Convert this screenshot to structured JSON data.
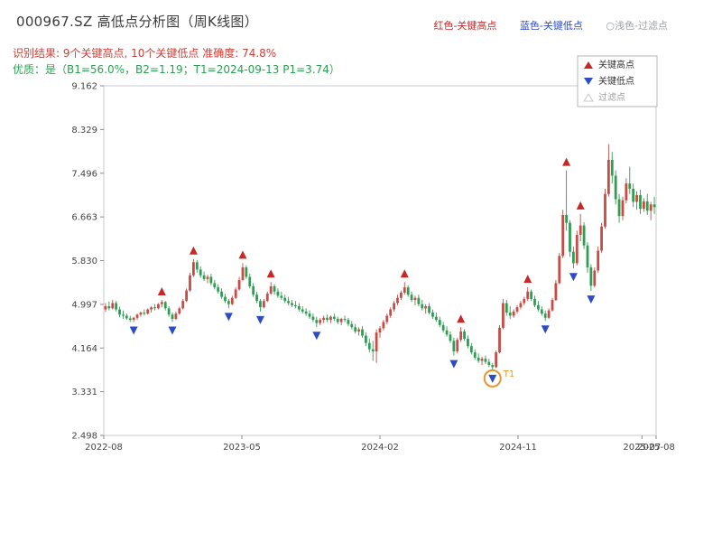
{
  "header": {
    "title": "000967.SZ 高低点分析图（周K线图）",
    "legend_top": [
      {
        "label": "红色-关键高点",
        "color": "#c62828"
      },
      {
        "label": "蓝色-关键低点",
        "color": "#2e4bc6"
      },
      {
        "label": "○浅色-过滤点",
        "color": "#9aa0a6"
      }
    ],
    "result_line": "识别结果: 9个关键高点, 10个关键低点  准确度: 74.8%",
    "quality_line": "优质：是（B1=56.0%，B2=1.19；T1=2024-09-13 P1=3.74）"
  },
  "chart_data": {
    "type": "candlestick",
    "frequency": "weekly",
    "title": "000967.SZ 高低点分析图（周K线图）",
    "ylim": [
      2.498,
      9.162
    ],
    "y_ticks": [
      2.498,
      3.331,
      4.164,
      4.997,
      5.83,
      6.663,
      7.496,
      8.329,
      9.162
    ],
    "x_ticks": [
      {
        "week": 0,
        "label": "2022-08"
      },
      {
        "week": 39,
        "label": "2023-05"
      },
      {
        "week": 78,
        "label": "2024-02"
      },
      {
        "week": 117,
        "label": "2024-11"
      },
      {
        "week": 152,
        "label": "2025-07"
      },
      {
        "week": 156,
        "label": "2025-08"
      }
    ],
    "colors": {
      "up": "#c84b45",
      "down": "#2e9e53",
      "key_high": "#c62828",
      "key_low": "#2e4bc6",
      "filter_point": "#c9c9c9",
      "annotation": "#e8962e"
    },
    "candles": [
      [
        4.9,
        5.02,
        4.85,
        4.96
      ],
      [
        4.96,
        5.05,
        4.88,
        4.92
      ],
      [
        4.92,
        5.08,
        4.9,
        5.02
      ],
      [
        5.02,
        5.06,
        4.86,
        4.9
      ],
      [
        4.9,
        4.95,
        4.75,
        4.8
      ],
      [
        4.8,
        4.88,
        4.72,
        4.78
      ],
      [
        4.78,
        4.82,
        4.7,
        4.73
      ],
      [
        4.73,
        4.78,
        4.66,
        4.7
      ],
      [
        4.7,
        4.76,
        4.66,
        4.74
      ],
      [
        4.74,
        4.82,
        4.7,
        4.8
      ],
      [
        4.8,
        4.86,
        4.76,
        4.84
      ],
      [
        4.84,
        4.9,
        4.78,
        4.82
      ],
      [
        4.82,
        4.92,
        4.8,
        4.9
      ],
      [
        4.9,
        4.96,
        4.84,
        4.94
      ],
      [
        4.94,
        5.0,
        4.88,
        4.92
      ],
      [
        4.92,
        5.02,
        4.9,
        5.0
      ],
      [
        5.0,
        5.08,
        4.94,
        5.04
      ],
      [
        5.04,
        5.06,
        4.88,
        4.92
      ],
      [
        4.92,
        4.96,
        4.76,
        4.8
      ],
      [
        4.8,
        4.84,
        4.66,
        4.72
      ],
      [
        4.72,
        4.86,
        4.7,
        4.82
      ],
      [
        4.82,
        4.95,
        4.8,
        4.92
      ],
      [
        4.92,
        5.1,
        4.9,
        5.06
      ],
      [
        5.06,
        5.3,
        5.04,
        5.26
      ],
      [
        5.26,
        5.6,
        5.24,
        5.55
      ],
      [
        5.55,
        5.86,
        5.52,
        5.8
      ],
      [
        5.8,
        5.84,
        5.6,
        5.66
      ],
      [
        5.66,
        5.72,
        5.5,
        5.55
      ],
      [
        5.55,
        5.62,
        5.44,
        5.48
      ],
      [
        5.48,
        5.56,
        5.4,
        5.52
      ],
      [
        5.52,
        5.58,
        5.36,
        5.4
      ],
      [
        5.4,
        5.46,
        5.28,
        5.32
      ],
      [
        5.32,
        5.38,
        5.2,
        5.24
      ],
      [
        5.24,
        5.3,
        5.1,
        5.14
      ],
      [
        5.14,
        5.2,
        5.02,
        5.06
      ],
      [
        5.06,
        5.1,
        4.92,
        5.0
      ],
      [
        5.0,
        5.16,
        4.98,
        5.12
      ],
      [
        5.12,
        5.32,
        5.1,
        5.28
      ],
      [
        5.28,
        5.52,
        5.26,
        5.46
      ],
      [
        5.46,
        5.78,
        5.44,
        5.7
      ],
      [
        5.7,
        5.74,
        5.48,
        5.52
      ],
      [
        5.52,
        5.58,
        5.3,
        5.34
      ],
      [
        5.34,
        5.4,
        5.14,
        5.18
      ],
      [
        5.18,
        5.24,
        5.02,
        5.06
      ],
      [
        5.06,
        5.1,
        4.86,
        4.94
      ],
      [
        4.94,
        5.1,
        4.92,
        5.06
      ],
      [
        5.06,
        5.24,
        5.04,
        5.2
      ],
      [
        5.2,
        5.42,
        5.18,
        5.34
      ],
      [
        5.34,
        5.38,
        5.18,
        5.24
      ],
      [
        5.24,
        5.3,
        5.12,
        5.16
      ],
      [
        5.16,
        5.24,
        5.08,
        5.12
      ],
      [
        5.12,
        5.18,
        5.02,
        5.06
      ],
      [
        5.06,
        5.14,
        4.98,
        5.02
      ],
      [
        5.02,
        5.08,
        4.94,
        4.98
      ],
      [
        4.98,
        5.06,
        4.92,
        4.96
      ],
      [
        4.96,
        5.02,
        4.86,
        4.9
      ],
      [
        4.9,
        4.96,
        4.82,
        4.86
      ],
      [
        4.86,
        4.92,
        4.78,
        4.82
      ],
      [
        4.82,
        4.88,
        4.72,
        4.76
      ],
      [
        4.76,
        4.82,
        4.66,
        4.7
      ],
      [
        4.7,
        4.76,
        4.56,
        4.64
      ],
      [
        4.64,
        4.74,
        4.6,
        4.7
      ],
      [
        4.7,
        4.78,
        4.64,
        4.74
      ],
      [
        4.74,
        4.8,
        4.66,
        4.7
      ],
      [
        4.7,
        4.78,
        4.64,
        4.76
      ],
      [
        4.76,
        4.82,
        4.68,
        4.72
      ],
      [
        4.72,
        4.76,
        4.62,
        4.66
      ],
      [
        4.66,
        4.74,
        4.6,
        4.72
      ],
      [
        4.72,
        4.78,
        4.66,
        4.7
      ],
      [
        4.7,
        4.74,
        4.58,
        4.62
      ],
      [
        4.62,
        4.68,
        4.52,
        4.56
      ],
      [
        4.56,
        4.62,
        4.44,
        4.48
      ],
      [
        4.48,
        4.56,
        4.4,
        4.52
      ],
      [
        4.52,
        4.58,
        4.36,
        4.4
      ],
      [
        4.4,
        4.46,
        4.2,
        4.26
      ],
      [
        4.26,
        4.34,
        4.08,
        4.14
      ],
      [
        4.14,
        4.3,
        3.92,
        4.1
      ],
      [
        4.1,
        4.52,
        3.88,
        4.46
      ],
      [
        4.46,
        4.58,
        4.36,
        4.54
      ],
      [
        4.54,
        4.7,
        4.5,
        4.66
      ],
      [
        4.66,
        4.82,
        4.62,
        4.78
      ],
      [
        4.78,
        4.94,
        4.74,
        4.9
      ],
      [
        4.9,
        5.06,
        4.86,
        5.02
      ],
      [
        5.02,
        5.18,
        4.98,
        5.12
      ],
      [
        5.12,
        5.26,
        5.08,
        5.22
      ],
      [
        5.22,
        5.42,
        5.18,
        5.32
      ],
      [
        5.32,
        5.36,
        5.14,
        5.18
      ],
      [
        5.18,
        5.24,
        5.04,
        5.08
      ],
      [
        5.08,
        5.16,
        4.98,
        5.12
      ],
      [
        5.12,
        5.18,
        4.96,
        5.0
      ],
      [
        5.0,
        5.08,
        4.88,
        4.92
      ],
      [
        4.92,
        5.0,
        4.82,
        4.96
      ],
      [
        4.96,
        5.02,
        4.8,
        4.84
      ],
      [
        4.84,
        4.9,
        4.72,
        4.76
      ],
      [
        4.76,
        4.84,
        4.66,
        4.7
      ],
      [
        4.7,
        4.76,
        4.56,
        4.6
      ],
      [
        4.6,
        4.66,
        4.46,
        4.5
      ],
      [
        4.5,
        4.58,
        4.38,
        4.42
      ],
      [
        4.42,
        4.48,
        4.26,
        4.3
      ],
      [
        4.3,
        4.36,
        4.02,
        4.1
      ],
      [
        4.1,
        4.36,
        4.06,
        4.32
      ],
      [
        4.32,
        4.56,
        4.28,
        4.48
      ],
      [
        4.48,
        4.52,
        4.3,
        4.34
      ],
      [
        4.34,
        4.4,
        4.16,
        4.2
      ],
      [
        4.2,
        4.26,
        4.04,
        4.08
      ],
      [
        4.08,
        4.14,
        3.94,
        3.98
      ],
      [
        3.98,
        4.06,
        3.88,
        3.92
      ],
      [
        3.92,
        4.0,
        3.84,
        3.96
      ],
      [
        3.96,
        4.02,
        3.86,
        3.9
      ],
      [
        3.9,
        3.96,
        3.8,
        3.84
      ],
      [
        3.84,
        3.88,
        3.74,
        3.8
      ],
      [
        3.8,
        4.12,
        3.78,
        4.08
      ],
      [
        4.08,
        4.6,
        4.06,
        4.55
      ],
      [
        4.55,
        5.1,
        4.52,
        5.02
      ],
      [
        5.02,
        5.08,
        4.78,
        4.84
      ],
      [
        4.84,
        4.96,
        4.72,
        4.78
      ],
      [
        4.78,
        4.9,
        4.74,
        4.86
      ],
      [
        4.86,
        4.98,
        4.82,
        4.94
      ],
      [
        4.94,
        5.06,
        4.9,
        5.02
      ],
      [
        5.02,
        5.14,
        4.98,
        5.1
      ],
      [
        5.1,
        5.32,
        5.06,
        5.24
      ],
      [
        5.24,
        5.28,
        5.06,
        5.1
      ],
      [
        5.1,
        5.16,
        4.94,
        4.98
      ],
      [
        4.98,
        5.06,
        4.86,
        4.9
      ],
      [
        4.9,
        4.96,
        4.78,
        4.82
      ],
      [
        4.82,
        4.88,
        4.68,
        4.74
      ],
      [
        4.74,
        4.92,
        4.72,
        4.88
      ],
      [
        4.88,
        5.12,
        4.86,
        5.08
      ],
      [
        5.08,
        5.46,
        5.06,
        5.4
      ],
      [
        5.4,
        5.98,
        5.38,
        5.92
      ],
      [
        5.92,
        6.8,
        5.88,
        6.7
      ],
      [
        6.7,
        7.55,
        6.4,
        6.55
      ],
      [
        6.55,
        6.6,
        5.9,
        6.0
      ],
      [
        6.0,
        6.1,
        5.68,
        5.78
      ],
      [
        5.78,
        6.4,
        5.74,
        6.32
      ],
      [
        6.32,
        6.72,
        6.2,
        6.5
      ],
      [
        6.5,
        6.56,
        6.05,
        6.12
      ],
      [
        6.12,
        6.18,
        5.6,
        5.7
      ],
      [
        5.7,
        5.76,
        5.25,
        5.35
      ],
      [
        5.35,
        5.7,
        5.32,
        5.64
      ],
      [
        5.64,
        6.1,
        5.6,
        6.02
      ],
      [
        6.02,
        6.55,
        5.98,
        6.48
      ],
      [
        6.48,
        7.2,
        6.44,
        7.1
      ],
      [
        7.1,
        8.05,
        7.05,
        7.75
      ],
      [
        7.75,
        7.9,
        7.3,
        7.45
      ],
      [
        7.45,
        7.55,
        6.9,
        7.0
      ],
      [
        7.0,
        7.1,
        6.55,
        6.68
      ],
      [
        6.68,
        7.05,
        6.6,
        6.98
      ],
      [
        6.98,
        7.4,
        6.92,
        7.3
      ],
      [
        7.3,
        7.62,
        7.1,
        7.2
      ],
      [
        7.2,
        7.3,
        6.85,
        6.95
      ],
      [
        6.95,
        7.15,
        6.8,
        7.08
      ],
      [
        7.08,
        7.18,
        6.72,
        6.82
      ],
      [
        6.82,
        7.02,
        6.76,
        6.96
      ],
      [
        6.96,
        7.1,
        6.7,
        6.78
      ],
      [
        6.78,
        6.95,
        6.6,
        6.9
      ],
      [
        6.9,
        7.05,
        6.72,
        6.85
      ]
    ],
    "key_highs": [
      {
        "week": 16,
        "price": 5.08
      },
      {
        "week": 25,
        "price": 5.86
      },
      {
        "week": 39,
        "price": 5.78
      },
      {
        "week": 47,
        "price": 5.42
      },
      {
        "week": 85,
        "price": 5.42
      },
      {
        "week": 101,
        "price": 4.56
      },
      {
        "week": 120,
        "price": 5.32
      },
      {
        "week": 131,
        "price": 7.55
      },
      {
        "week": 135,
        "price": 6.72
      }
    ],
    "key_lows": [
      {
        "week": 8,
        "price": 4.66
      },
      {
        "week": 19,
        "price": 4.66
      },
      {
        "week": 35,
        "price": 4.92
      },
      {
        "week": 44,
        "price": 4.86
      },
      {
        "week": 60,
        "price": 4.56
      },
      {
        "week": 99,
        "price": 4.02
      },
      {
        "week": 110,
        "price": 3.74
      },
      {
        "week": 125,
        "price": 4.68
      },
      {
        "week": 133,
        "price": 5.68
      },
      {
        "week": 138,
        "price": 5.25
      }
    ],
    "t1_annotation": {
      "week": 110,
      "price": 3.74,
      "label": "T1"
    },
    "chart_legend": [
      {
        "label": "关键高点",
        "marker": "up",
        "color": "#c62828",
        "text_color": "#333333"
      },
      {
        "label": "关键低点",
        "marker": "down",
        "color": "#2e4bc6",
        "text_color": "#333333"
      },
      {
        "label": "过滤点",
        "marker": "up-open",
        "color": "#c9c9c9",
        "text_color": "#9e9e9e"
      }
    ],
    "legend_position": "upper-right",
    "grid": false
  }
}
